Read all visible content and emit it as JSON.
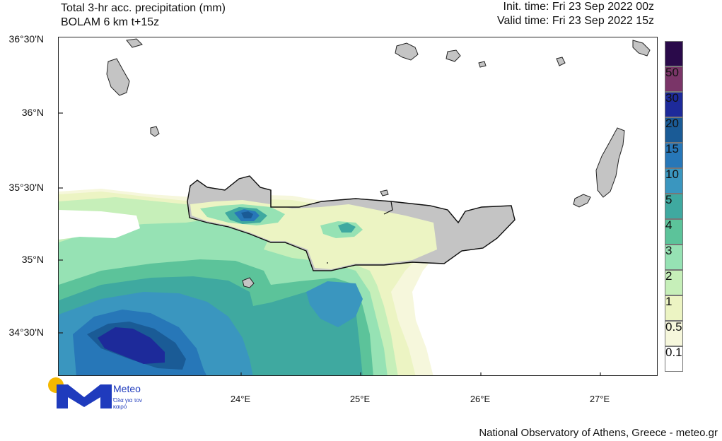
{
  "header": {
    "title_line1": "Total 3-hr acc. precipitation (mm)",
    "title_line2": "BOLAM 6 km t+15z",
    "init_time": "Init. time: Fri 23 Sep 2022 00z",
    "valid_time": "Valid time: Fri 23 Sep 2022 15z"
  },
  "map": {
    "lat_labels": [
      "36°30'N",
      "36°N",
      "35°30'N",
      "35°N",
      "34°30'N"
    ],
    "lon_labels": [
      "24°E",
      "25°E",
      "26°E",
      "27°E"
    ],
    "land_color": "#c4c4c4",
    "sea_color": "#ffffff"
  },
  "legend": {
    "labels": [
      "50",
      "30",
      "20",
      "15",
      "10",
      "5",
      "4",
      "3",
      "2",
      "1",
      "0.5",
      "0.1"
    ],
    "colors": [
      "#2a0a4a",
      "#7a3568",
      "#1d2a9a",
      "#1a5b96",
      "#2777b8",
      "#3a96bf",
      "#3fa9a0",
      "#5cc39a",
      "#96e2b4",
      "#c6efb9",
      "#ecf4c3",
      "#f6f7dc",
      "#ffffff"
    ]
  },
  "logo": {
    "name": "Meteo",
    "tagline": "Όλα για τον καιρό",
    "sun_color": "#f5b800",
    "brand_color": "#1f3bbd"
  },
  "footer": {
    "credit": "National Observatory of Athens, Greece - meteo.gr"
  }
}
